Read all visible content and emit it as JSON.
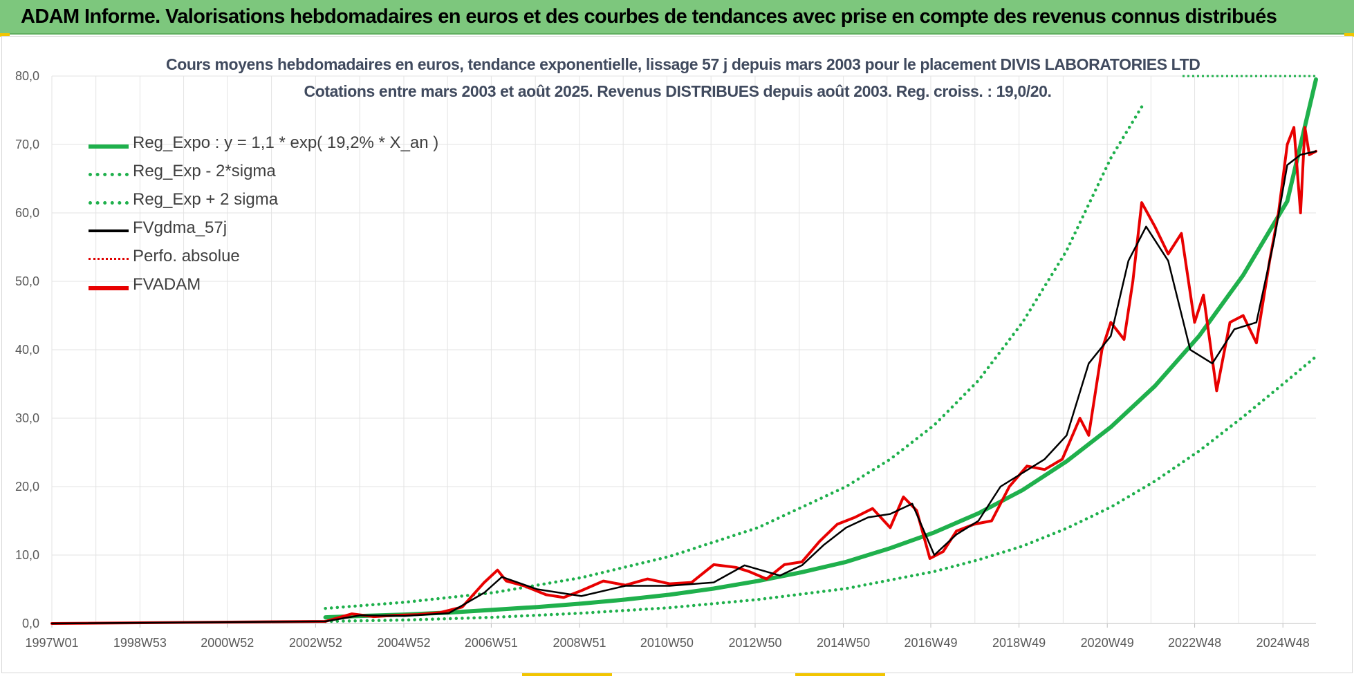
{
  "banner": {
    "title": "ADAM Informe. Valorisations hebdomadaires en euros et des courbes de tendances avec prise en compte des revenus connus distribués",
    "background": "#7dc77d"
  },
  "chart_data": {
    "type": "line",
    "title_lines": [
      "Cours moyens hebdomadaires en euros, tendance exponentielle, lissage 57 j depuis mars 2003 pour le placement DIVIS LABORATORIES LTD",
      "Cotations entre mars 2003 et août 2025.  Revenus DISTRIBUES depuis août 2003. Reg. croiss. : 19,0/20."
    ],
    "xlabel": "",
    "ylabel": "",
    "x_range": [
      "1997W01",
      "2025W35"
    ],
    "x_tick_labels": [
      "1997W01",
      "1998W53",
      "2000W52",
      "2002W52",
      "2004W52",
      "2006W51",
      "2008W51",
      "2010W50",
      "2012W50",
      "2014W50",
      "2016W49",
      "2018W49",
      "2020W49",
      "2022W48",
      "2024W48"
    ],
    "ylim": [
      0,
      80
    ],
    "y_tick_labels": [
      "0,0",
      "10,0",
      "20,0",
      "30,0",
      "40,0",
      "50,0",
      "60,0",
      "70,0",
      "80,0"
    ],
    "grid": true,
    "legend_position": "top-left",
    "series": [
      {
        "name": "Reg_Expo : y = 1,1 * exp( 19,2% *  X_an )",
        "color": "#1fb04c",
        "style": "solid-thick",
        "x": [
          2003.2,
          2004,
          2005,
          2006,
          2007,
          2008,
          2009,
          2010,
          2011,
          2012,
          2013,
          2014,
          2015,
          2016,
          2017,
          2018,
          2019,
          2020,
          2021,
          2022,
          2023,
          2024,
          2025,
          2025.65
        ],
        "y": [
          0.9,
          1.1,
          1.3,
          1.6,
          2.0,
          2.4,
          2.9,
          3.5,
          4.2,
          5.1,
          6.2,
          7.5,
          9.0,
          11.0,
          13.3,
          16.1,
          19.5,
          23.7,
          28.7,
          34.7,
          42.0,
          50.9,
          61.7,
          79.5
        ]
      },
      {
        "name": "Reg_Exp - 2*sigma",
        "color": "#1fb04c",
        "style": "dotted",
        "x": [
          2003.2,
          2005,
          2007,
          2009,
          2011,
          2013,
          2015,
          2017,
          2018,
          2019,
          2020,
          2021,
          2022,
          2023,
          2024,
          2025,
          2025.65
        ],
        "y": [
          0.3,
          0.5,
          0.9,
          1.5,
          2.3,
          3.5,
          5.1,
          7.6,
          9.3,
          11.3,
          13.9,
          17.0,
          20.8,
          25.2,
          30.2,
          35.5,
          39.0
        ]
      },
      {
        "name": "Reg_Exp + 2 sigma",
        "color": "#1fb04c",
        "style": "dotted",
        "x": [
          2003.2,
          2005,
          2007,
          2009,
          2011,
          2013,
          2015,
          2016,
          2017,
          2018,
          2019,
          2020,
          2021,
          2021.7
        ],
        "y": [
          2.2,
          3.1,
          4.5,
          6.7,
          9.8,
          14.0,
          20.0,
          24.0,
          29.0,
          35.5,
          44.0,
          54.5,
          68.0,
          75.5
        ]
      },
      {
        "name": "FVgdma_57j",
        "color": "#000000",
        "style": "solid",
        "x": [
          1997.0,
          2003.2,
          2004,
          2005,
          2006,
          2006.8,
          2007.2,
          2008,
          2009,
          2010,
          2011,
          2012,
          2012.7,
          2013.5,
          2014,
          2014.5,
          2015,
          2015.5,
          2016,
          2016.5,
          2017,
          2017.5,
          2018,
          2018.5,
          2019,
          2019.5,
          2020,
          2020.5,
          2021,
          2021.4,
          2021.8,
          2022.3,
          2022.8,
          2023.3,
          2023.8,
          2024.3,
          2024.7,
          2025.0,
          2025.3,
          2025.65
        ],
        "y": [
          0.0,
          0.3,
          1.2,
          1.1,
          1.5,
          4.5,
          6.8,
          5.0,
          4.0,
          5.5,
          5.5,
          6.0,
          8.5,
          7.0,
          8.5,
          11.5,
          14.0,
          15.5,
          16.0,
          17.5,
          10.0,
          13.0,
          15.0,
          20.0,
          22.0,
          24.0,
          27.5,
          38.0,
          42.0,
          53.0,
          58.0,
          53.0,
          40.0,
          38.0,
          43.0,
          44.0,
          56.0,
          67.0,
          68.5,
          69.0
        ]
      },
      {
        "name": "Perfo. absolue",
        "color": "#e00000",
        "style": "dotted",
        "x": [],
        "y": []
      },
      {
        "name": "FVADAM",
        "color": "#e80000",
        "style": "solid-thick",
        "x": [
          1997.0,
          2003.2,
          2003.8,
          2004.3,
          2004.8,
          2005.3,
          2005.8,
          2006.3,
          2006.8,
          2007.1,
          2007.3,
          2007.7,
          2008.2,
          2008.6,
          2009.0,
          2009.5,
          2010.0,
          2010.5,
          2011.0,
          2011.5,
          2012.0,
          2012.5,
          2012.8,
          2013.2,
          2013.6,
          2014.0,
          2014.4,
          2014.8,
          2015.2,
          2015.6,
          2016.0,
          2016.3,
          2016.6,
          2016.9,
          2017.2,
          2017.5,
          2017.9,
          2018.3,
          2018.7,
          2019.1,
          2019.5,
          2019.9,
          2020.3,
          2020.5,
          2020.8,
          2021.0,
          2021.3,
          2021.5,
          2021.7,
          2022.0,
          2022.3,
          2022.6,
          2022.9,
          2023.1,
          2023.4,
          2023.7,
          2024.0,
          2024.3,
          2024.6,
          2024.8,
          2025.0,
          2025.15,
          2025.3,
          2025.4,
          2025.5,
          2025.65
        ],
        "y": [
          0.0,
          0.3,
          1.4,
          1.0,
          1.2,
          1.3,
          1.6,
          2.4,
          6.0,
          7.8,
          6.2,
          5.5,
          4.2,
          3.8,
          4.8,
          6.2,
          5.6,
          6.5,
          5.8,
          6.0,
          8.6,
          8.2,
          7.6,
          6.5,
          8.6,
          9.0,
          12.0,
          14.5,
          15.5,
          16.8,
          14.0,
          18.5,
          16.5,
          9.5,
          10.5,
          13.5,
          14.5,
          15.0,
          20.0,
          23.0,
          22.5,
          24.0,
          30.0,
          27.5,
          40.0,
          44.0,
          41.5,
          50.0,
          61.5,
          58.0,
          54.0,
          57.0,
          44.0,
          48.0,
          34.0,
          44.0,
          45.0,
          41.0,
          53.0,
          60.0,
          70.0,
          72.5,
          60.0,
          72.5,
          68.5,
          69.0
        ]
      }
    ]
  }
}
